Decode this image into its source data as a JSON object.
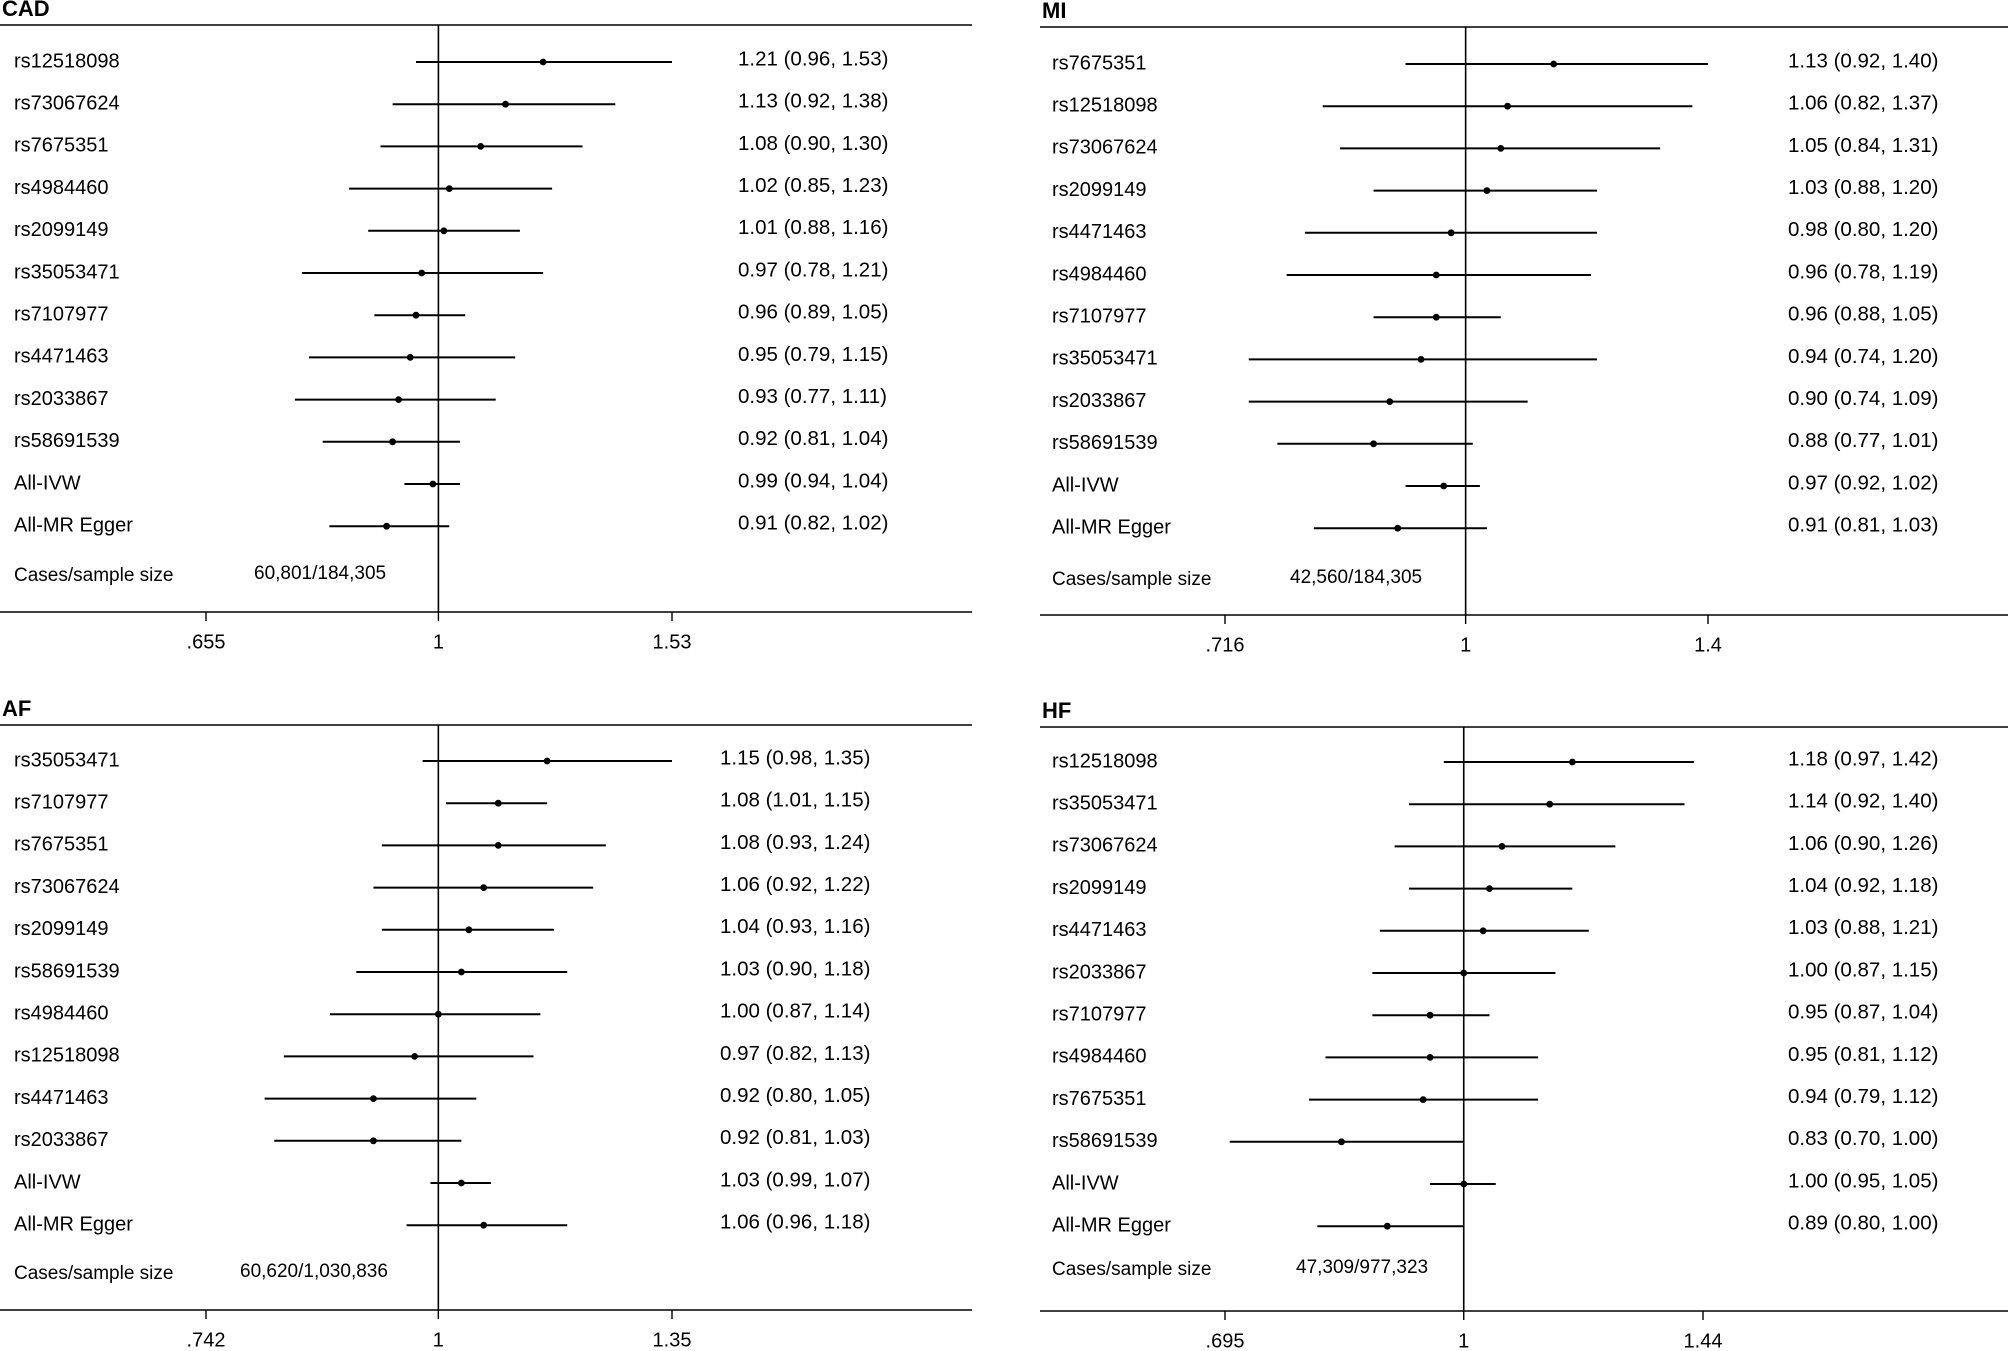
{
  "chart_data": [
    {
      "type": "forest",
      "title": "CAD",
      "scale": "log",
      "reference": 1,
      "xticks": [
        ".655",
        "1",
        "1.53"
      ],
      "xtick_values": [
        0.655,
        1,
        1.53
      ],
      "footer_label": "Cases/sample size",
      "footer_value": "60,801/184,305",
      "rows": [
        {
          "label": "rs12518098",
          "or": 1.21,
          "lo": 0.96,
          "hi": 1.53,
          "text": "1.21 (0.96, 1.53)"
        },
        {
          "label": "rs73067624",
          "or": 1.13,
          "lo": 0.92,
          "hi": 1.38,
          "text": "1.13 (0.92, 1.38)"
        },
        {
          "label": "rs7675351",
          "or": 1.08,
          "lo": 0.9,
          "hi": 1.3,
          "text": "1.08 (0.90, 1.30)"
        },
        {
          "label": "rs4984460",
          "or": 1.02,
          "lo": 0.85,
          "hi": 1.23,
          "text": "1.02 (0.85, 1.23)"
        },
        {
          "label": "rs2099149",
          "or": 1.01,
          "lo": 0.88,
          "hi": 1.16,
          "text": "1.01 (0.88, 1.16)"
        },
        {
          "label": "rs35053471",
          "or": 0.97,
          "lo": 0.78,
          "hi": 1.21,
          "text": "0.97 (0.78, 1.21)"
        },
        {
          "label": "rs7107977",
          "or": 0.96,
          "lo": 0.89,
          "hi": 1.05,
          "text": "0.96 (0.89, 1.05)"
        },
        {
          "label": "rs4471463",
          "or": 0.95,
          "lo": 0.79,
          "hi": 1.15,
          "text": "0.95 (0.79, 1.15)"
        },
        {
          "label": "rs2033867",
          "or": 0.93,
          "lo": 0.77,
          "hi": 1.11,
          "text": "0.93 (0.77, 1.11)"
        },
        {
          "label": "rs58691539",
          "or": 0.92,
          "lo": 0.81,
          "hi": 1.04,
          "text": "0.92 (0.81, 1.04)"
        },
        {
          "label": "All-IVW",
          "or": 0.99,
          "lo": 0.94,
          "hi": 1.04,
          "text": "0.99 (0.94, 1.04)"
        },
        {
          "label": "All-MR Egger",
          "or": 0.91,
          "lo": 0.82,
          "hi": 1.02,
          "text": "0.91 (0.82, 1.02)"
        }
      ]
    },
    {
      "type": "forest",
      "title": "MI",
      "scale": "log",
      "reference": 1,
      "xticks": [
        ".716",
        "1",
        "1.4"
      ],
      "xtick_values": [
        0.716,
        1,
        1.4
      ],
      "footer_label": "Cases/sample size",
      "footer_value": "42,560/184,305",
      "rows": [
        {
          "label": "rs7675351",
          "or": 1.13,
          "lo": 0.92,
          "hi": 1.4,
          "text": "1.13 (0.92, 1.40)"
        },
        {
          "label": "rs12518098",
          "or": 1.06,
          "lo": 0.82,
          "hi": 1.37,
          "text": "1.06 (0.82, 1.37)"
        },
        {
          "label": "rs73067624",
          "or": 1.05,
          "lo": 0.84,
          "hi": 1.31,
          "text": "1.05 (0.84, 1.31)"
        },
        {
          "label": "rs2099149",
          "or": 1.03,
          "lo": 0.88,
          "hi": 1.2,
          "text": "1.03 (0.88, 1.20)"
        },
        {
          "label": "rs4471463",
          "or": 0.98,
          "lo": 0.8,
          "hi": 1.2,
          "text": "0.98 (0.80, 1.20)"
        },
        {
          "label": "rs4984460",
          "or": 0.96,
          "lo": 0.78,
          "hi": 1.19,
          "text": "0.96 (0.78, 1.19)"
        },
        {
          "label": "rs7107977",
          "or": 0.96,
          "lo": 0.88,
          "hi": 1.05,
          "text": "0.96 (0.88, 1.05)"
        },
        {
          "label": "rs35053471",
          "or": 0.94,
          "lo": 0.74,
          "hi": 1.2,
          "text": "0.94 (0.74, 1.20)"
        },
        {
          "label": "rs2033867",
          "or": 0.9,
          "lo": 0.74,
          "hi": 1.09,
          "text": "0.90 (0.74, 1.09)"
        },
        {
          "label": "rs58691539",
          "or": 0.88,
          "lo": 0.77,
          "hi": 1.01,
          "text": "0.88 (0.77, 1.01)"
        },
        {
          "label": "All-IVW",
          "or": 0.97,
          "lo": 0.92,
          "hi": 1.02,
          "text": "0.97 (0.92, 1.02)"
        },
        {
          "label": "All-MR Egger",
          "or": 0.91,
          "lo": 0.81,
          "hi": 1.03,
          "text": "0.91 (0.81, 1.03)"
        }
      ]
    },
    {
      "type": "forest",
      "title": "AF",
      "scale": "log",
      "reference": 1,
      "xticks": [
        ".742",
        "1",
        "1.35"
      ],
      "xtick_values": [
        0.742,
        1,
        1.35
      ],
      "footer_label": "Cases/sample size",
      "footer_value": "60,620/1,030,836",
      "rows": [
        {
          "label": "rs35053471",
          "or": 1.15,
          "lo": 0.98,
          "hi": 1.35,
          "text": "1.15 (0.98, 1.35)"
        },
        {
          "label": "rs7107977",
          "or": 1.08,
          "lo": 1.01,
          "hi": 1.15,
          "text": "1.08 (1.01, 1.15)"
        },
        {
          "label": "rs7675351",
          "or": 1.08,
          "lo": 0.93,
          "hi": 1.24,
          "text": "1.08 (0.93, 1.24)"
        },
        {
          "label": "rs73067624",
          "or": 1.06,
          "lo": 0.92,
          "hi": 1.22,
          "text": "1.06 (0.92, 1.22)"
        },
        {
          "label": "rs2099149",
          "or": 1.04,
          "lo": 0.93,
          "hi": 1.16,
          "text": "1.04 (0.93, 1.16)"
        },
        {
          "label": "rs58691539",
          "or": 1.03,
          "lo": 0.9,
          "hi": 1.18,
          "text": "1.03 (0.90, 1.18)"
        },
        {
          "label": "rs4984460",
          "or": 1.0,
          "lo": 0.87,
          "hi": 1.14,
          "text": "1.00 (0.87, 1.14)"
        },
        {
          "label": "rs12518098",
          "or": 0.97,
          "lo": 0.82,
          "hi": 1.13,
          "text": "0.97 (0.82, 1.13)"
        },
        {
          "label": "rs4471463",
          "or": 0.92,
          "lo": 0.8,
          "hi": 1.05,
          "text": "0.92 (0.80, 1.05)"
        },
        {
          "label": "rs2033867",
          "or": 0.92,
          "lo": 0.81,
          "hi": 1.03,
          "text": "0.92 (0.81, 1.03)"
        },
        {
          "label": "All-IVW",
          "or": 1.03,
          "lo": 0.99,
          "hi": 1.07,
          "text": "1.03 (0.99, 1.07)"
        },
        {
          "label": "All-MR Egger",
          "or": 1.06,
          "lo": 0.96,
          "hi": 1.18,
          "text": "1.06 (0.96, 1.18)"
        }
      ]
    },
    {
      "type": "forest",
      "title": "HF",
      "scale": "log",
      "reference": 1,
      "xticks": [
        ".695",
        "1",
        "1.44"
      ],
      "xtick_values": [
        0.695,
        1,
        1.44
      ],
      "footer_label": "Cases/sample size",
      "footer_value": "47,309/977,323",
      "rows": [
        {
          "label": "rs12518098",
          "or": 1.18,
          "lo": 0.97,
          "hi": 1.42,
          "text": "1.18 (0.97, 1.42)"
        },
        {
          "label": "rs35053471",
          "or": 1.14,
          "lo": 0.92,
          "hi": 1.4,
          "text": "1.14 (0.92, 1.40)"
        },
        {
          "label": "rs73067624",
          "or": 1.06,
          "lo": 0.9,
          "hi": 1.26,
          "text": "1.06 (0.90, 1.26)"
        },
        {
          "label": "rs2099149",
          "or": 1.04,
          "lo": 0.92,
          "hi": 1.18,
          "text": "1.04 (0.92, 1.18)"
        },
        {
          "label": "rs4471463",
          "or": 1.03,
          "lo": 0.88,
          "hi": 1.21,
          "text": "1.03 (0.88, 1.21)"
        },
        {
          "label": "rs2033867",
          "or": 1.0,
          "lo": 0.87,
          "hi": 1.15,
          "text": "1.00 (0.87, 1.15)"
        },
        {
          "label": "rs7107977",
          "or": 0.95,
          "lo": 0.87,
          "hi": 1.04,
          "text": "0.95 (0.87, 1.04)"
        },
        {
          "label": "rs4984460",
          "or": 0.95,
          "lo": 0.81,
          "hi": 1.12,
          "text": "0.95 (0.81, 1.12)"
        },
        {
          "label": "rs7675351",
          "or": 0.94,
          "lo": 0.79,
          "hi": 1.12,
          "text": "0.94 (0.79, 1.12)"
        },
        {
          "label": "rs58691539",
          "or": 0.83,
          "lo": 0.7,
          "hi": 1.0,
          "text": "0.83 (0.70, 1.00)"
        },
        {
          "label": "All-IVW",
          "or": 1.0,
          "lo": 0.95,
          "hi": 1.05,
          "text": "1.00 (0.95, 1.05)"
        },
        {
          "label": "All-MR Egger",
          "or": 0.89,
          "lo": 0.8,
          "hi": 1.0,
          "text": "0.89 (0.80, 1.00)"
        }
      ]
    }
  ]
}
